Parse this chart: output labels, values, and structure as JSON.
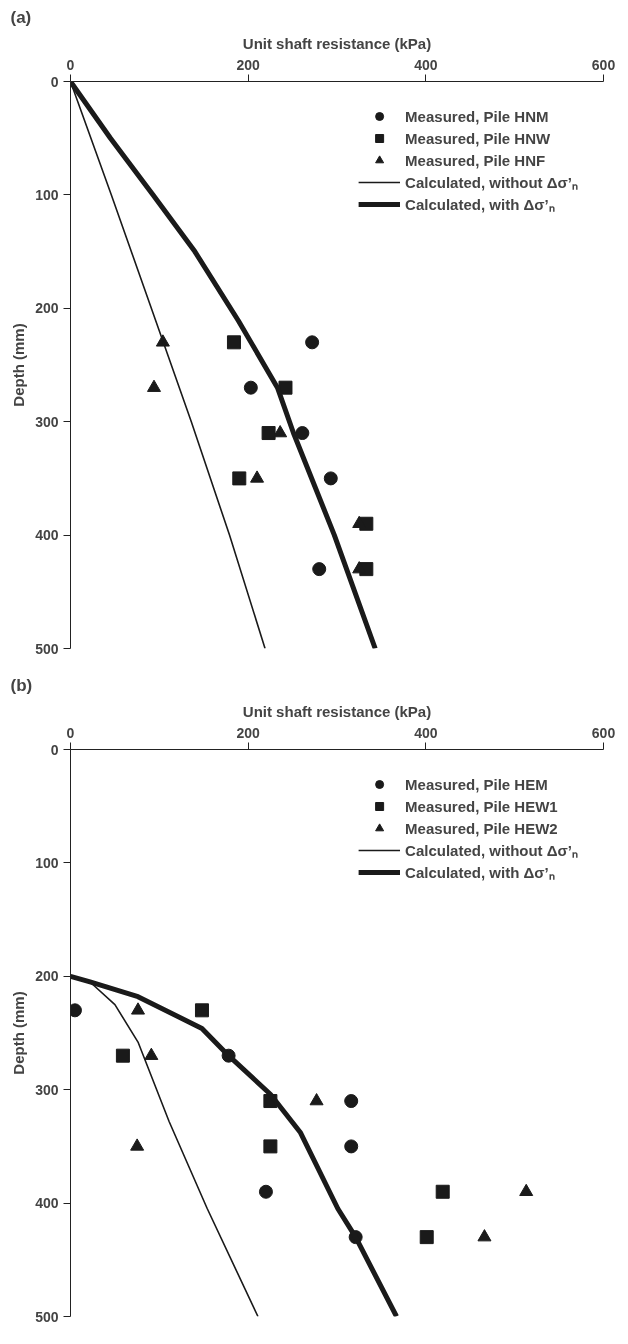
{
  "chart_data": [
    {
      "type": "scatter",
      "title": "(a)",
      "xlabel": "Unit shaft resistance (kPa)",
      "ylabel": "Depth (mm)",
      "xlim": [
        0,
        600
      ],
      "xticks": [
        0,
        200,
        400,
        600
      ],
      "ylim": [
        500,
        0
      ],
      "yticks": [
        0,
        100,
        200,
        300,
        400,
        500
      ],
      "grid": false,
      "legend": "top right",
      "series": [
        {
          "name": "Measured, Pile HNM",
          "marker": "circle",
          "color": "#1a1a1a",
          "x": [
            272,
            203,
            261,
            293,
            280
          ],
          "values": [
            230,
            270,
            310,
            350,
            430
          ]
        },
        {
          "name": "Measured, Pile HNW",
          "marker": "square",
          "color": "#1a1a1a",
          "x": [
            184,
            242,
            223,
            190,
            333,
            333
          ],
          "values": [
            230,
            270,
            310,
            350,
            390,
            430
          ]
        },
        {
          "name": "Measured, Pile HNF",
          "marker": "triangle",
          "color": "#1a1a1a",
          "x": [
            104,
            94,
            236,
            210,
            325,
            325
          ],
          "values": [
            230,
            270,
            310,
            350,
            390,
            430
          ]
        },
        {
          "name": "Calculated, without Δσ’ₙ",
          "type": "line",
          "line_style": "solid",
          "color": "#1a1a1a",
          "x": [
            0,
            46,
            91,
            136,
            179,
            219
          ],
          "values": [
            0,
            100,
            200,
            300,
            400,
            500
          ]
        },
        {
          "name": "Calculated, with Δσ’ₙ",
          "type": "line",
          "line_style": "solid",
          "color": "#1a1a1a",
          "x": [
            0,
            45,
            93,
            140,
            189,
            233,
            251,
            297,
            343
          ],
          "values": [
            0,
            50,
            100,
            150,
            211,
            270,
            310,
            400,
            500
          ]
        }
      ]
    },
    {
      "type": "scatter",
      "title": "(b)",
      "xlabel": "Unit shaft resistance (kPa)",
      "ylabel": "Depth (mm)",
      "xlim": [
        0,
        600
      ],
      "xticks": [
        0,
        200,
        400,
        600
      ],
      "ylim": [
        500,
        0
      ],
      "yticks": [
        0,
        100,
        200,
        300,
        400,
        500
      ],
      "grid": false,
      "legend": "top right",
      "series": [
        {
          "name": "Measured, Pile HEM",
          "marker": "circle",
          "color": "#1a1a1a",
          "x": [
            5,
            178,
            316,
            316,
            220,
            321
          ],
          "values": [
            230,
            270,
            310,
            350,
            390,
            430
          ]
        },
        {
          "name": "Measured, Pile HEW1",
          "marker": "square",
          "color": "#1a1a1a",
          "x": [
            148,
            59,
            225,
            225,
            419,
            401
          ],
          "values": [
            230,
            270,
            310,
            350,
            390,
            430
          ]
        },
        {
          "name": "Measured, Pile HEW2",
          "marker": "triangle",
          "color": "#1a1a1a",
          "x": [
            76,
            91,
            277,
            75,
            513,
            466
          ],
          "values": [
            230,
            270,
            310,
            350,
            390,
            430
          ]
        },
        {
          "name": "Calculated, without Δσ’ₙ",
          "type": "line",
          "line_style": "solid",
          "color": "#1a1a1a",
          "x": [
            0,
            22,
            50,
            76,
            111,
            154,
            211
          ],
          "values": [
            200,
            205,
            225,
            258,
            328,
            405,
            500
          ]
        },
        {
          "name": "Calculated, with Δσ’ₙ",
          "type": "line",
          "line_style": "solid",
          "color": "#1a1a1a",
          "x": [
            0,
            22,
            76,
            148,
            178,
            225,
            259,
            301,
            321,
            367
          ],
          "values": [
            200,
            205,
            218,
            246,
            270,
            304,
            338,
            405,
            430,
            500
          ]
        }
      ]
    }
  ]
}
